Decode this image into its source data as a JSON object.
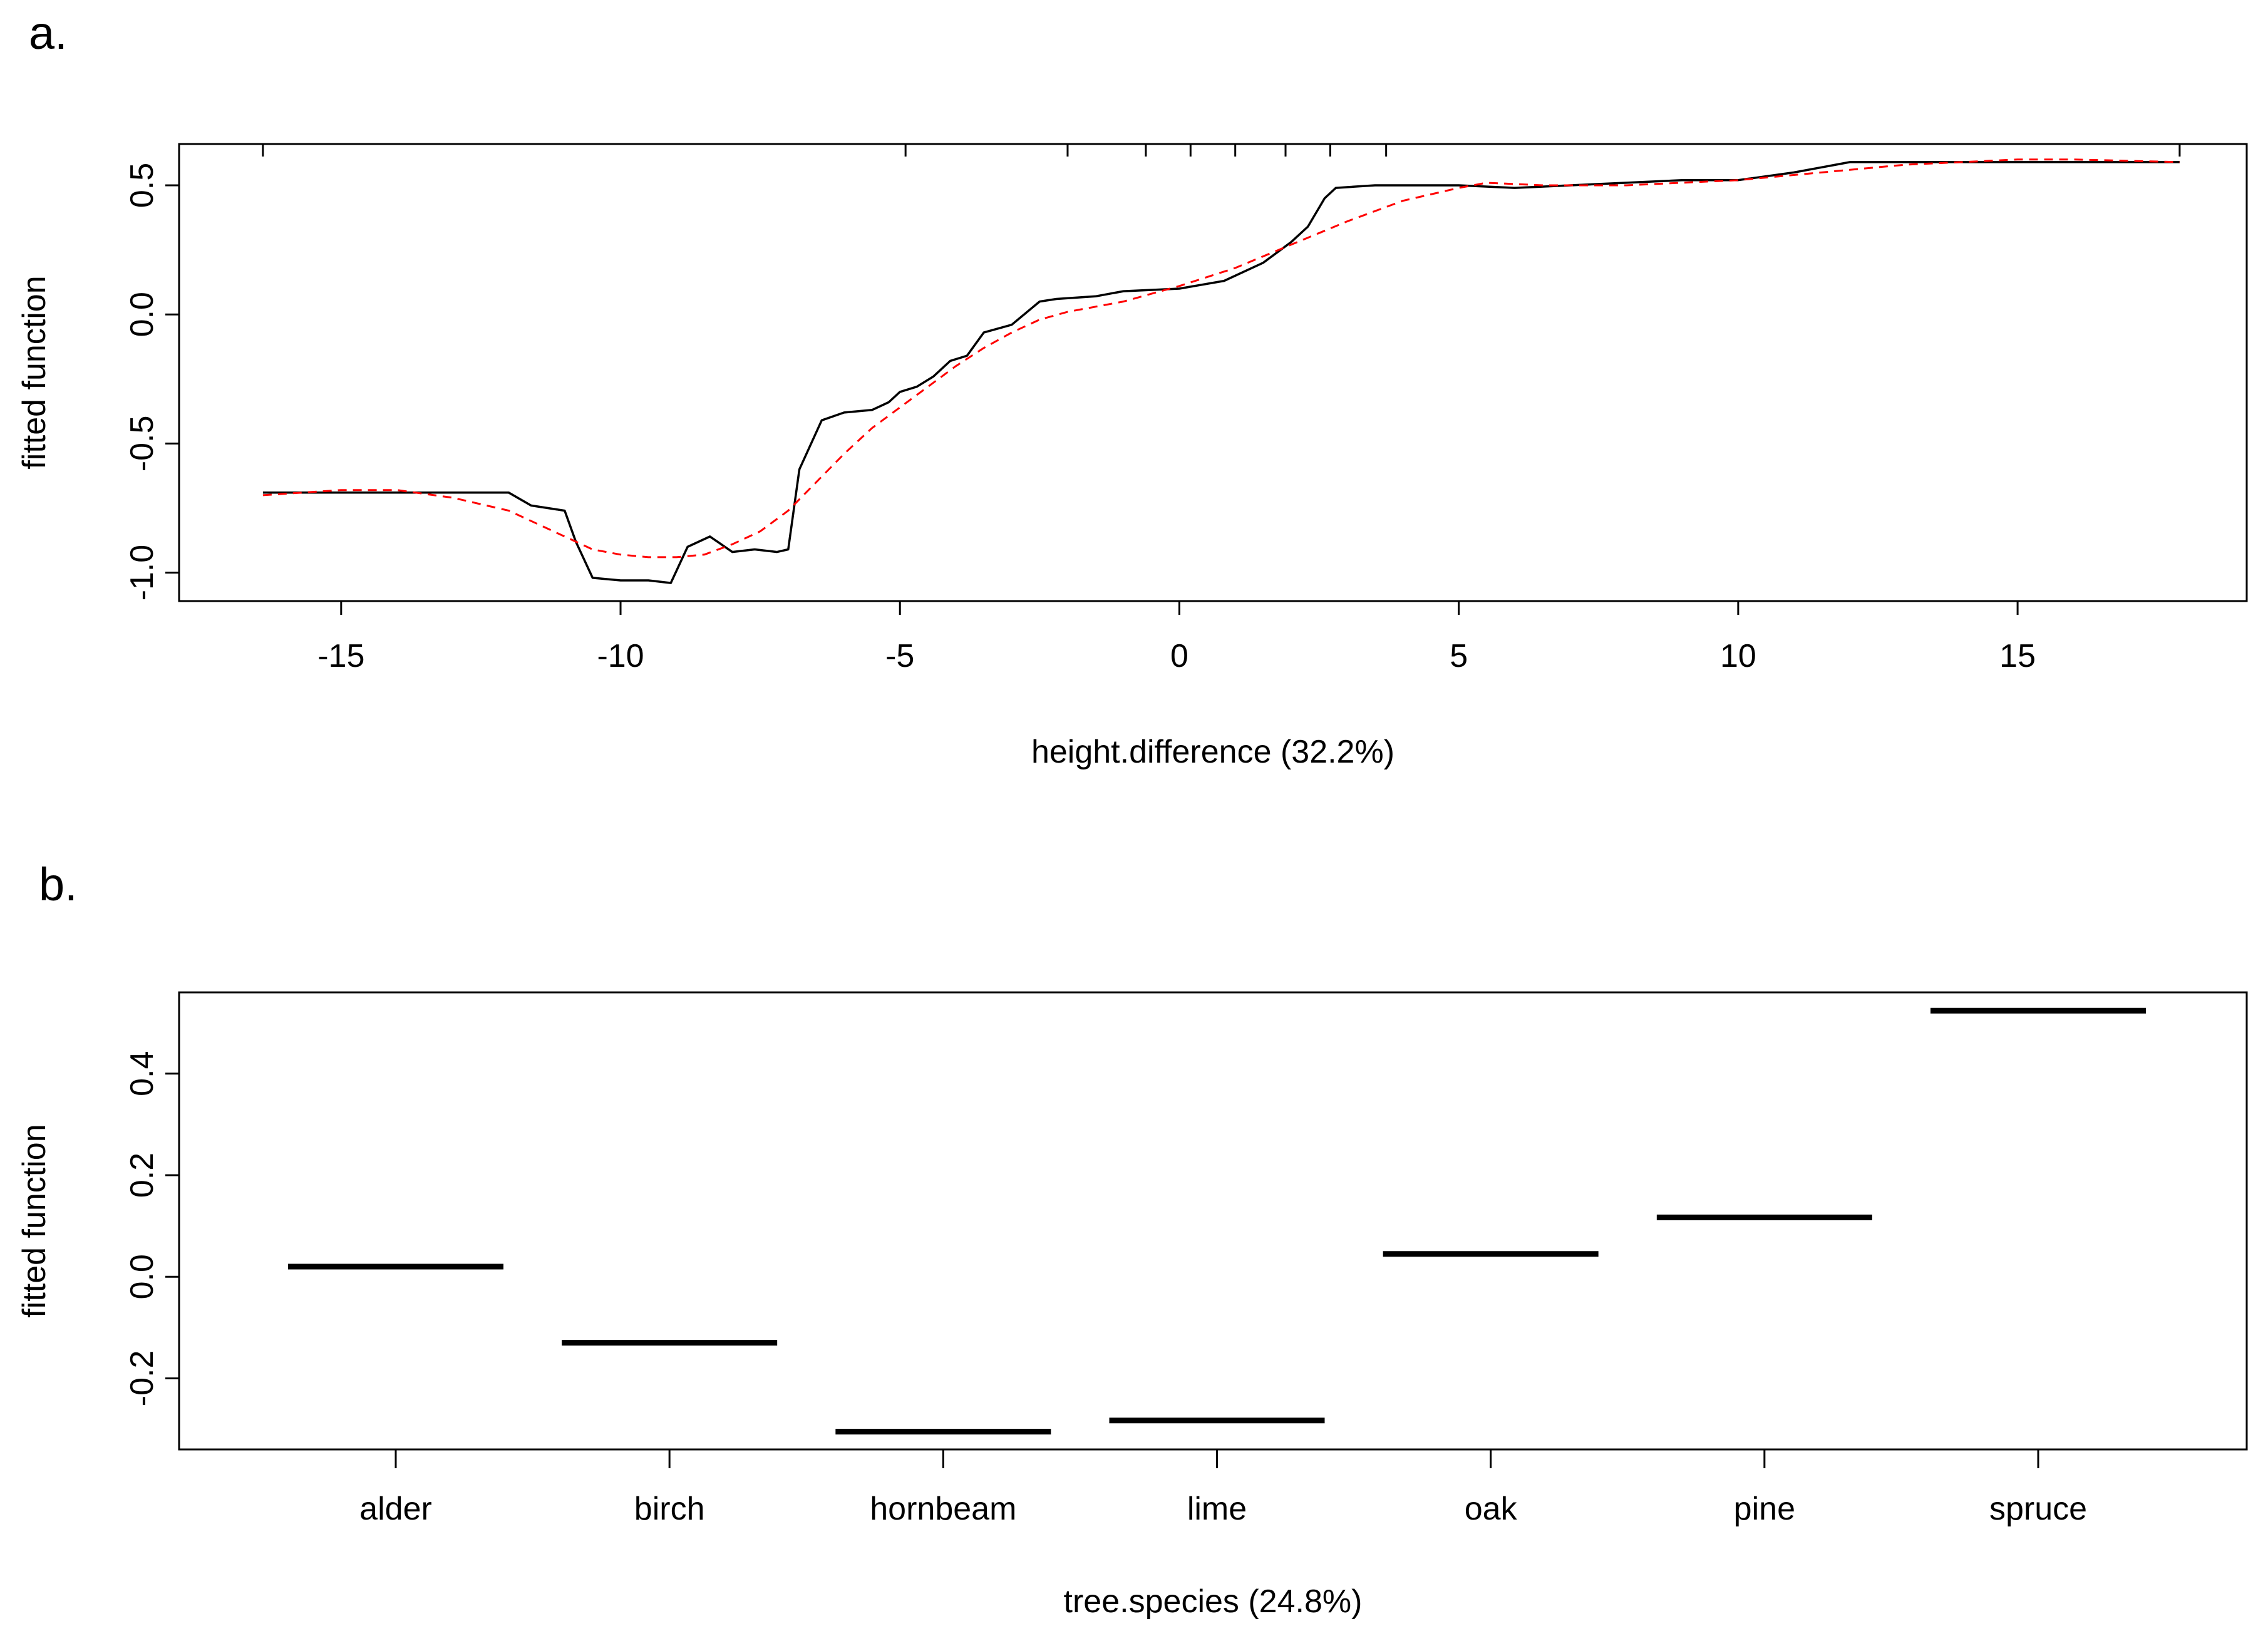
{
  "chart_data": [
    {
      "type": "line",
      "panel_label": "a.",
      "xlabel": "height.difference  (32.2%)",
      "ylabel": "fitted function",
      "xlim": [
        -17.9,
        19.1
      ],
      "ylim": [
        -1.11,
        0.66
      ],
      "xticks": [
        -15,
        -10,
        -5,
        0,
        5,
        10,
        15
      ],
      "xtick_labels": [
        "-15",
        "-10",
        "-5",
        "0",
        "5",
        "10",
        "15"
      ],
      "yticks": [
        -1.0,
        -0.5,
        0.0,
        0.5
      ],
      "ytick_labels": [
        "-1.0",
        "-0.5",
        "0.0",
        "0.5"
      ],
      "rug": [
        -16.4,
        -4.9,
        -2.0,
        -0.6,
        0.2,
        1.0,
        1.9,
        2.7,
        3.7,
        17.9
      ],
      "grid": false,
      "series": [
        {
          "color": "#000000",
          "style": "solid",
          "x": [
            -16.4,
            -12.0,
            -11.6,
            -11.0,
            -10.8,
            -10.5,
            -10.0,
            -9.5,
            -9.1,
            -8.8,
            -8.4,
            -8.0,
            -7.6,
            -7.2,
            -7.0,
            -6.8,
            -6.4,
            -6.0,
            -5.5,
            -5.2,
            -5.0,
            -4.7,
            -4.4,
            -4.1,
            -3.8,
            -3.5,
            -3.0,
            -2.5,
            -2.2,
            -1.5,
            -1.0,
            0.0,
            0.8,
            1.5,
            2.0,
            2.3,
            2.6,
            2.8,
            3.5,
            4.0,
            5.0,
            6.0,
            7.0,
            8.0,
            9.0,
            10.0,
            11.0,
            12.0,
            13.0,
            15.0,
            17.9
          ],
          "y": [
            -0.69,
            -0.69,
            -0.74,
            -0.76,
            -0.88,
            -1.02,
            -1.03,
            -1.03,
            -1.04,
            -0.9,
            -0.86,
            -0.92,
            -0.91,
            -0.92,
            -0.91,
            -0.6,
            -0.41,
            -0.38,
            -0.37,
            -0.34,
            -0.3,
            -0.28,
            -0.24,
            -0.18,
            -0.16,
            -0.07,
            -0.04,
            0.05,
            0.06,
            0.07,
            0.09,
            0.1,
            0.13,
            0.2,
            0.28,
            0.34,
            0.45,
            0.49,
            0.5,
            0.5,
            0.5,
            0.49,
            0.5,
            0.51,
            0.52,
            0.52,
            0.55,
            0.59,
            0.59,
            0.59,
            0.59
          ]
        },
        {
          "color": "#ff0000",
          "style": "dashed",
          "x": [
            -16.4,
            -15.0,
            -14.0,
            -13.0,
            -12.0,
            -11.0,
            -10.5,
            -10.0,
            -9.5,
            -9.0,
            -8.5,
            -8.0,
            -7.5,
            -7.0,
            -6.5,
            -6.0,
            -5.5,
            -5.0,
            -4.5,
            -4.0,
            -3.5,
            -3.0,
            -2.5,
            -2.0,
            -1.0,
            0.0,
            1.0,
            2.0,
            3.0,
            4.0,
            5.0,
            5.5,
            6.5,
            7.0,
            8.0,
            10.0,
            12.0,
            13.0,
            14.0,
            15.0,
            16.0,
            17.9
          ],
          "y": [
            -0.7,
            -0.68,
            -0.68,
            -0.71,
            -0.76,
            -0.86,
            -0.91,
            -0.93,
            -0.94,
            -0.94,
            -0.93,
            -0.89,
            -0.84,
            -0.76,
            -0.65,
            -0.54,
            -0.44,
            -0.36,
            -0.28,
            -0.2,
            -0.13,
            -0.07,
            -0.02,
            0.01,
            0.05,
            0.11,
            0.18,
            0.27,
            0.36,
            0.44,
            0.49,
            0.51,
            0.5,
            0.5,
            0.5,
            0.52,
            0.56,
            0.58,
            0.59,
            0.6,
            0.6,
            0.59
          ]
        }
      ]
    },
    {
      "type": "bar",
      "panel_label": "b.",
      "xlabel": "tree.species  (24.8%)",
      "ylabel": "fitted function",
      "categories": [
        "alder",
        "birch",
        "hornbeam",
        "lime",
        "oak",
        "pine",
        "spruce"
      ],
      "values": [
        0.02,
        -0.13,
        -0.305,
        -0.283,
        0.045,
        0.117,
        0.524
      ],
      "ylim": [
        -0.34,
        0.56
      ],
      "yticks": [
        -0.2,
        0.0,
        0.2,
        0.4
      ],
      "ytick_labels": [
        "-0.2",
        "0.0",
        "0.2",
        "0.4"
      ],
      "grid": false
    }
  ]
}
